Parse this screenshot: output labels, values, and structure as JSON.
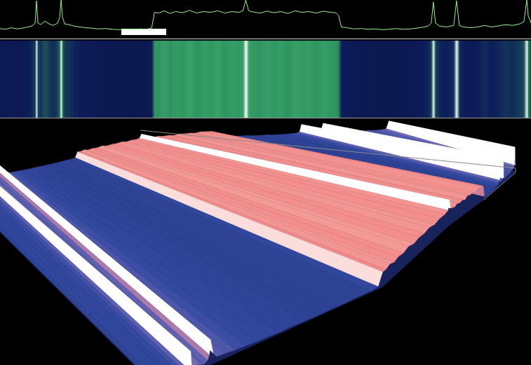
{
  "chart_data": {
    "type": "line",
    "x": [
      0,
      8,
      16,
      24,
      32,
      40,
      46,
      50,
      52,
      54,
      58,
      64,
      70,
      76,
      82,
      85,
      87,
      89,
      92,
      98,
      106,
      114,
      122,
      130,
      140,
      150,
      160,
      170,
      180,
      190,
      200,
      210,
      216,
      220,
      226,
      234,
      242,
      250,
      260,
      270,
      280,
      290,
      300,
      310,
      320,
      330,
      340,
      346,
      350,
      354,
      360,
      370,
      380,
      390,
      400,
      410,
      420,
      430,
      440,
      450,
      460,
      470,
      478,
      482,
      486,
      494,
      504,
      514,
      524,
      534,
      544,
      554,
      564,
      574,
      584,
      594,
      604,
      610,
      614,
      617,
      620,
      626,
      636,
      646,
      650,
      654,
      660,
      670,
      680,
      690,
      700,
      710,
      720,
      730,
      740,
      746,
      750,
      752,
      756
    ],
    "values": [
      26,
      24,
      28,
      25,
      27,
      30,
      33,
      40,
      98,
      40,
      36,
      45,
      38,
      34,
      40,
      55,
      100,
      55,
      38,
      36,
      32,
      30,
      28,
      27,
      25,
      26,
      24,
      23,
      24,
      23,
      25,
      24,
      28,
      68,
      66,
      72,
      65,
      70,
      67,
      73,
      66,
      70,
      68,
      72,
      66,
      70,
      68,
      72,
      100,
      72,
      69,
      66,
      71,
      67,
      70,
      65,
      72,
      68,
      70,
      66,
      71,
      68,
      67,
      60,
      30,
      28,
      25,
      26,
      24,
      25,
      23,
      24,
      26,
      24,
      25,
      27,
      30,
      33,
      40,
      95,
      40,
      32,
      30,
      34,
      98,
      34,
      30,
      28,
      30,
      34,
      30,
      33,
      36,
      34,
      38,
      44,
      100,
      60,
      40
    ],
    "color": "#9cf28f",
    "xlim": [
      0,
      756
    ],
    "ylim": [
      0,
      100
    ],
    "tick_labels": false,
    "grid": false
  }
}
